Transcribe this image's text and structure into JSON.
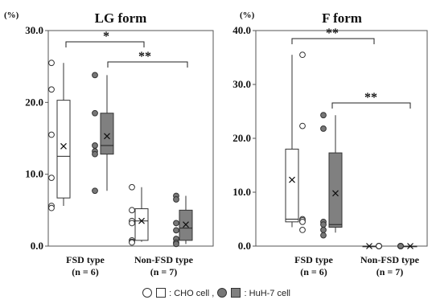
{
  "chart_data": [
    {
      "type": "boxplot",
      "title": "LG form",
      "y_unit": "(%)",
      "ylim": [
        0,
        30
      ],
      "yticks": [
        "0.0",
        "10.0",
        "20.0",
        "30.0"
      ],
      "groups": [
        {
          "label_line1": "FSD type",
          "label_line2": "(n = 6)"
        },
        {
          "label_line1": "Non-FSD type",
          "label_line2": "(n = 7)"
        }
      ],
      "boxes": [
        {
          "series": "CHO",
          "group": 0,
          "min": 5.6,
          "q1": 6.7,
          "median": 12.5,
          "q3": 20.3,
          "max": 25.5,
          "mean": 13.9,
          "points": [
            25.5,
            21.8,
            15.5,
            9.5,
            5.6,
            5.3
          ]
        },
        {
          "series": "HuH-7",
          "group": 0,
          "min": 7.7,
          "q1": 12.8,
          "median": 14.0,
          "q3": 18.5,
          "max": 23.8,
          "mean": 15.3,
          "points": [
            23.8,
            18.5,
            14.0,
            13.2,
            12.8,
            7.7
          ]
        },
        {
          "series": "CHO",
          "group": 1,
          "min": 0.6,
          "q1": 0.8,
          "median": 3.5,
          "q3": 5.2,
          "max": 8.2,
          "mean": 3.5,
          "points": [
            8.2,
            5.0,
            3.5,
            3.2,
            0.8,
            0.6,
            0.5
          ]
        },
        {
          "series": "HuH-7",
          "group": 1,
          "min": 0.3,
          "q1": 0.8,
          "median": 2.5,
          "q3": 5.0,
          "max": 7.0,
          "mean": 3.0,
          "points": [
            7.0,
            6.5,
            3.2,
            2.2,
            1.0,
            0.5,
            0.3
          ]
        }
      ],
      "significance": [
        {
          "label": "*",
          "from_box": 0,
          "to_box": 2
        },
        {
          "label": "**",
          "from_box": 1,
          "to_box": 3
        }
      ]
    },
    {
      "type": "boxplot",
      "title": "F form",
      "y_unit": "(%)",
      "ylim": [
        0,
        40
      ],
      "yticks": [
        "0.0",
        "10.0",
        "20.0",
        "30.0",
        "40.0"
      ],
      "groups": [
        {
          "label_line1": "FSD type",
          "label_line2": "(n = 6)"
        },
        {
          "label_line1": "Non-FSD type",
          "label_line2": "(n = 7)"
        }
      ],
      "boxes": [
        {
          "series": "CHO",
          "group": 0,
          "min": 3.5,
          "q1": 4.5,
          "median": 5.0,
          "q3": 18.0,
          "max": 35.5,
          "mean": 12.3,
          "points": [
            35.5,
            22.3,
            5.0,
            4.8,
            4.5,
            3.0
          ]
        },
        {
          "series": "HuH-7",
          "group": 0,
          "min": 2.5,
          "q1": 3.5,
          "median": 4.0,
          "q3": 17.3,
          "max": 24.3,
          "mean": 9.8,
          "points": [
            24.3,
            21.8,
            4.5,
            4.0,
            3.0,
            2.0
          ]
        },
        {
          "series": "CHO",
          "group": 1,
          "min": 0.0,
          "q1": 0.0,
          "median": 0.0,
          "q3": 0.0,
          "max": 0.0,
          "mean": 0.0,
          "points": [
            0,
            0,
            0,
            0,
            0,
            0,
            0
          ]
        },
        {
          "series": "HuH-7",
          "group": 1,
          "min": 0.0,
          "q1": 0.0,
          "median": 0.0,
          "q3": 0.0,
          "max": 0.0,
          "mean": 0.0,
          "points": [
            0,
            0,
            0,
            0,
            0,
            0,
            0
          ]
        }
      ],
      "significance": [
        {
          "label": "**",
          "from_box": 0,
          "to_box": 2
        },
        {
          "label": "**",
          "from_box": 1,
          "to_box": 3
        }
      ]
    }
  ],
  "legend": {
    "cho_label": ": CHO cell ,",
    "huh7_label": ": HuH-7 cell"
  },
  "colors": {
    "cho_fill": "#ffffff",
    "huh7_fill": "#808080",
    "huh7_point": "#777777",
    "stroke": "#333333"
  }
}
